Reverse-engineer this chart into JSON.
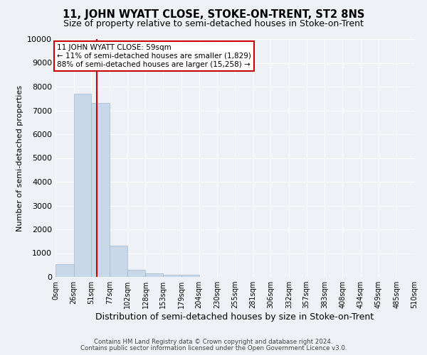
{
  "title": "11, JOHN WYATT CLOSE, STOKE-ON-TRENT, ST2 8NS",
  "subtitle": "Size of property relative to semi-detached houses in Stoke-on-Trent",
  "xlabel": "Distribution of semi-detached houses by size in Stoke-on-Trent",
  "ylabel": "Number of semi-detached properties",
  "footer1": "Contains HM Land Registry data © Crown copyright and database right 2024.",
  "footer2": "Contains public sector information licensed under the Open Government Licence v3.0.",
  "bin_edges": [
    0,
    26,
    51,
    77,
    102,
    128,
    153,
    179,
    204,
    230,
    255,
    281,
    306,
    332,
    357,
    383,
    408,
    434,
    459,
    485,
    510
  ],
  "bar_heights": [
    550,
    7700,
    7300,
    1300,
    300,
    150,
    80,
    80,
    0,
    0,
    0,
    0,
    0,
    0,
    0,
    0,
    0,
    0,
    0,
    0
  ],
  "bar_color": "#c8d8e8",
  "bar_edge_color": "#a0b8cc",
  "property_size": 59,
  "property_line_color": "#cc0000",
  "annotation_text": "11 JOHN WYATT CLOSE: 59sqm\n← 11% of semi-detached houses are smaller (1,829)\n88% of semi-detached houses are larger (15,258) →",
  "annotation_box_color": "#ffffff",
  "annotation_box_edge": "#cc0000",
  "ylim": [
    0,
    10000
  ],
  "yticks": [
    0,
    1000,
    2000,
    3000,
    4000,
    5000,
    6000,
    7000,
    8000,
    9000,
    10000
  ],
  "background_color": "#eef2f7",
  "grid_color": "#ffffff",
  "title_fontsize": 10.5,
  "subtitle_fontsize": 9,
  "axis_label_fontsize": 8,
  "tick_fontsize": 7,
  "tick_labels": [
    "0sqm",
    "26sqm",
    "51sqm",
    "77sqm",
    "102sqm",
    "128sqm",
    "153sqm",
    "179sqm",
    "204sqm",
    "230sqm",
    "255sqm",
    "281sqm",
    "306sqm",
    "332sqm",
    "357sqm",
    "383sqm",
    "408sqm",
    "434sqm",
    "459sqm",
    "485sqm",
    "510sqm"
  ]
}
